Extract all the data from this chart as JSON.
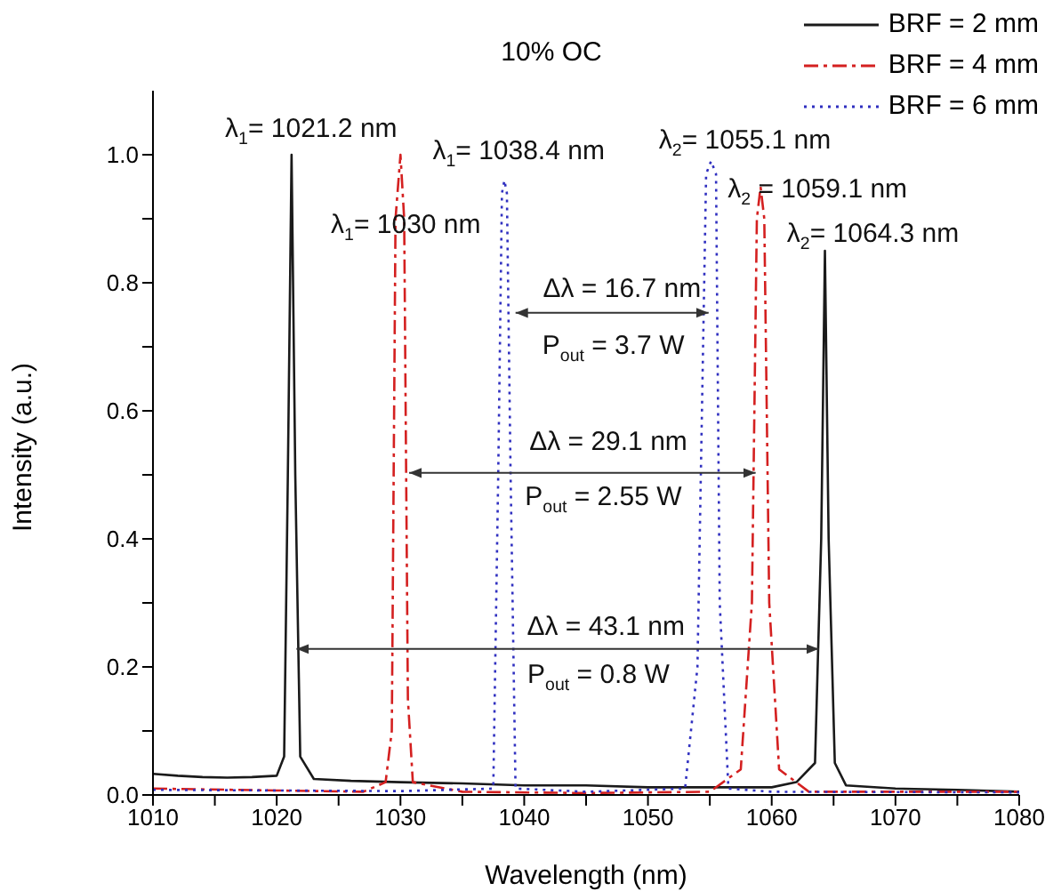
{
  "chart_data": {
    "type": "line",
    "title": "10% OC",
    "xlabel": "Wavelength (nm)",
    "ylabel": "Intensity (a.u.)",
    "xlim": [
      1010,
      1080
    ],
    "xticks": [
      1010,
      {
        "value": 1015,
        "label": null
      },
      1020,
      {
        "value": 1025,
        "label": null
      },
      1030,
      {
        "value": 1035,
        "label": null
      },
      1040,
      {
        "value": 1045,
        "label": null
      },
      1050,
      {
        "value": 1055,
        "label": null
      },
      1060,
      {
        "value": 1065,
        "label": null
      },
      1070,
      {
        "value": 1075,
        "label": null
      },
      1080
    ],
    "ylim": [
      0,
      1.1
    ],
    "yticks": [
      {
        "value": 0,
        "label": "0.0"
      },
      {
        "value": 0.1,
        "label": null
      },
      {
        "value": 0.2,
        "label": "0.2"
      },
      {
        "value": 0.3,
        "label": null
      },
      {
        "value": 0.4,
        "label": "0.4"
      },
      {
        "value": 0.5,
        "label": null
      },
      {
        "value": 0.6,
        "label": "0.6"
      },
      {
        "value": 0.7,
        "label": null
      },
      {
        "value": 0.8,
        "label": "0.8"
      },
      {
        "value": 0.9,
        "label": null
      },
      {
        "value": 1.0,
        "label": "1.0"
      }
    ],
    "legend": "top right",
    "marker": "none",
    "series": [
      {
        "name": "BRF = 2 mm",
        "color": "#1a1a1a",
        "line_style": "solid",
        "x": [
          1010,
          1012,
          1014,
          1016,
          1018,
          1020,
          1020.6,
          1020.9,
          1021.2,
          1021.5,
          1021.9,
          1023,
          1026,
          1030,
          1035,
          1040,
          1045,
          1050,
          1055,
          1060,
          1062,
          1063.5,
          1064.0,
          1064.3,
          1064.6,
          1065.1,
          1066,
          1070,
          1075,
          1080
        ],
        "values": [
          0.033,
          0.03,
          0.028,
          0.027,
          0.028,
          0.03,
          0.06,
          0.5,
          1.0,
          0.5,
          0.06,
          0.025,
          0.022,
          0.02,
          0.018,
          0.015,
          0.015,
          0.012,
          0.012,
          0.012,
          0.02,
          0.05,
          0.4,
          0.85,
          0.4,
          0.05,
          0.015,
          0.01,
          0.008,
          0.005
        ]
      },
      {
        "name": "BRF = 4 mm",
        "color": "#d42020",
        "line_style": "dashed",
        "x": [
          1010,
          1020,
          1027,
          1028.8,
          1029.3,
          1029.6,
          1030,
          1030.3,
          1030.6,
          1031,
          1035,
          1045,
          1055,
          1057.5,
          1058.4,
          1058.8,
          1059.1,
          1059.4,
          1059.8,
          1060.6,
          1063,
          1070,
          1080
        ],
        "values": [
          0.01,
          0.007,
          0.005,
          0.02,
          0.1,
          0.9,
          1.0,
          0.9,
          0.15,
          0.02,
          0.005,
          0.003,
          0.005,
          0.04,
          0.3,
          0.9,
          0.95,
          0.9,
          0.3,
          0.04,
          0.005,
          0.005,
          0.005
        ]
      },
      {
        "name": "BRF = 6 mm",
        "color": "#3030c0",
        "line_style": "dotted",
        "x": [
          1010,
          1030,
          1037.5,
          1037.9,
          1038.2,
          1038.4,
          1038.6,
          1038.9,
          1039.3,
          1045,
          1053,
          1054,
          1054.7,
          1055.1,
          1055.5,
          1055.8,
          1056.5,
          1060,
          1080
        ],
        "values": [
          0.008,
          0.006,
          0.01,
          0.5,
          0.94,
          0.96,
          0.94,
          0.5,
          0.01,
          0.005,
          0.01,
          0.2,
          0.97,
          0.99,
          0.97,
          0.3,
          0.01,
          0.005,
          0.004
        ]
      },
      {
        "type": "line",
        "color": "#333333",
        "x": [
          1039.3,
          1054.9
        ],
        "values": [
          0.753,
          0.753
        ]
      },
      {
        "type": "line",
        "color": "#333333",
        "x": [
          1030.7,
          1058.7
        ],
        "values": [
          0.503,
          0.503
        ]
      },
      {
        "type": "line",
        "color": "#333333",
        "x": [
          1021.6,
          1063.8
        ],
        "values": [
          0.228,
          0.228
        ]
      }
    ],
    "annotations": [
      {
        "text": "λ$_{1}$= 1021.2 nm",
        "x": 1021.2,
        "y": 1.0
      },
      {
        "text": "λ$_{1}$= 1030 nm",
        "x": 1030,
        "y": 1.0
      },
      {
        "text": "λ$_{1}$= 1038.4 nm",
        "x": 1038.4,
        "y": 0.96
      },
      {
        "text": "λ$_{2}$= 1055.1 nm",
        "x": 1055.1,
        "y": 0.99
      },
      {
        "text": "λ$_{2}$ = 1059.1 nm",
        "x": 1059.1,
        "y": 0.95
      },
      {
        "text": "λ$_{2}$= 1064.3 nm",
        "x": 1064.3,
        "y": 0.85
      },
      {
        "text": "Δλ = 16.7 nm",
        "x": 1047.9,
        "y": 0.753
      },
      {
        "text": "P$_{out}$ = 3.7 W",
        "x": 1047.2,
        "y": 0.753
      },
      {
        "text": "Δλ = 29.1 nm",
        "x": 1046.8,
        "y": 0.503
      },
      {
        "text": "P$_{out}$ = 2.55 W",
        "x": 1046.4,
        "y": 0.503
      },
      {
        "text": "Δλ = 43.1 nm",
        "x": 1046.6,
        "y": 0.228
      },
      {
        "text": "P$_{out}$ = 0.8 W",
        "x": 1046,
        "y": 0.228
      }
    ]
  }
}
